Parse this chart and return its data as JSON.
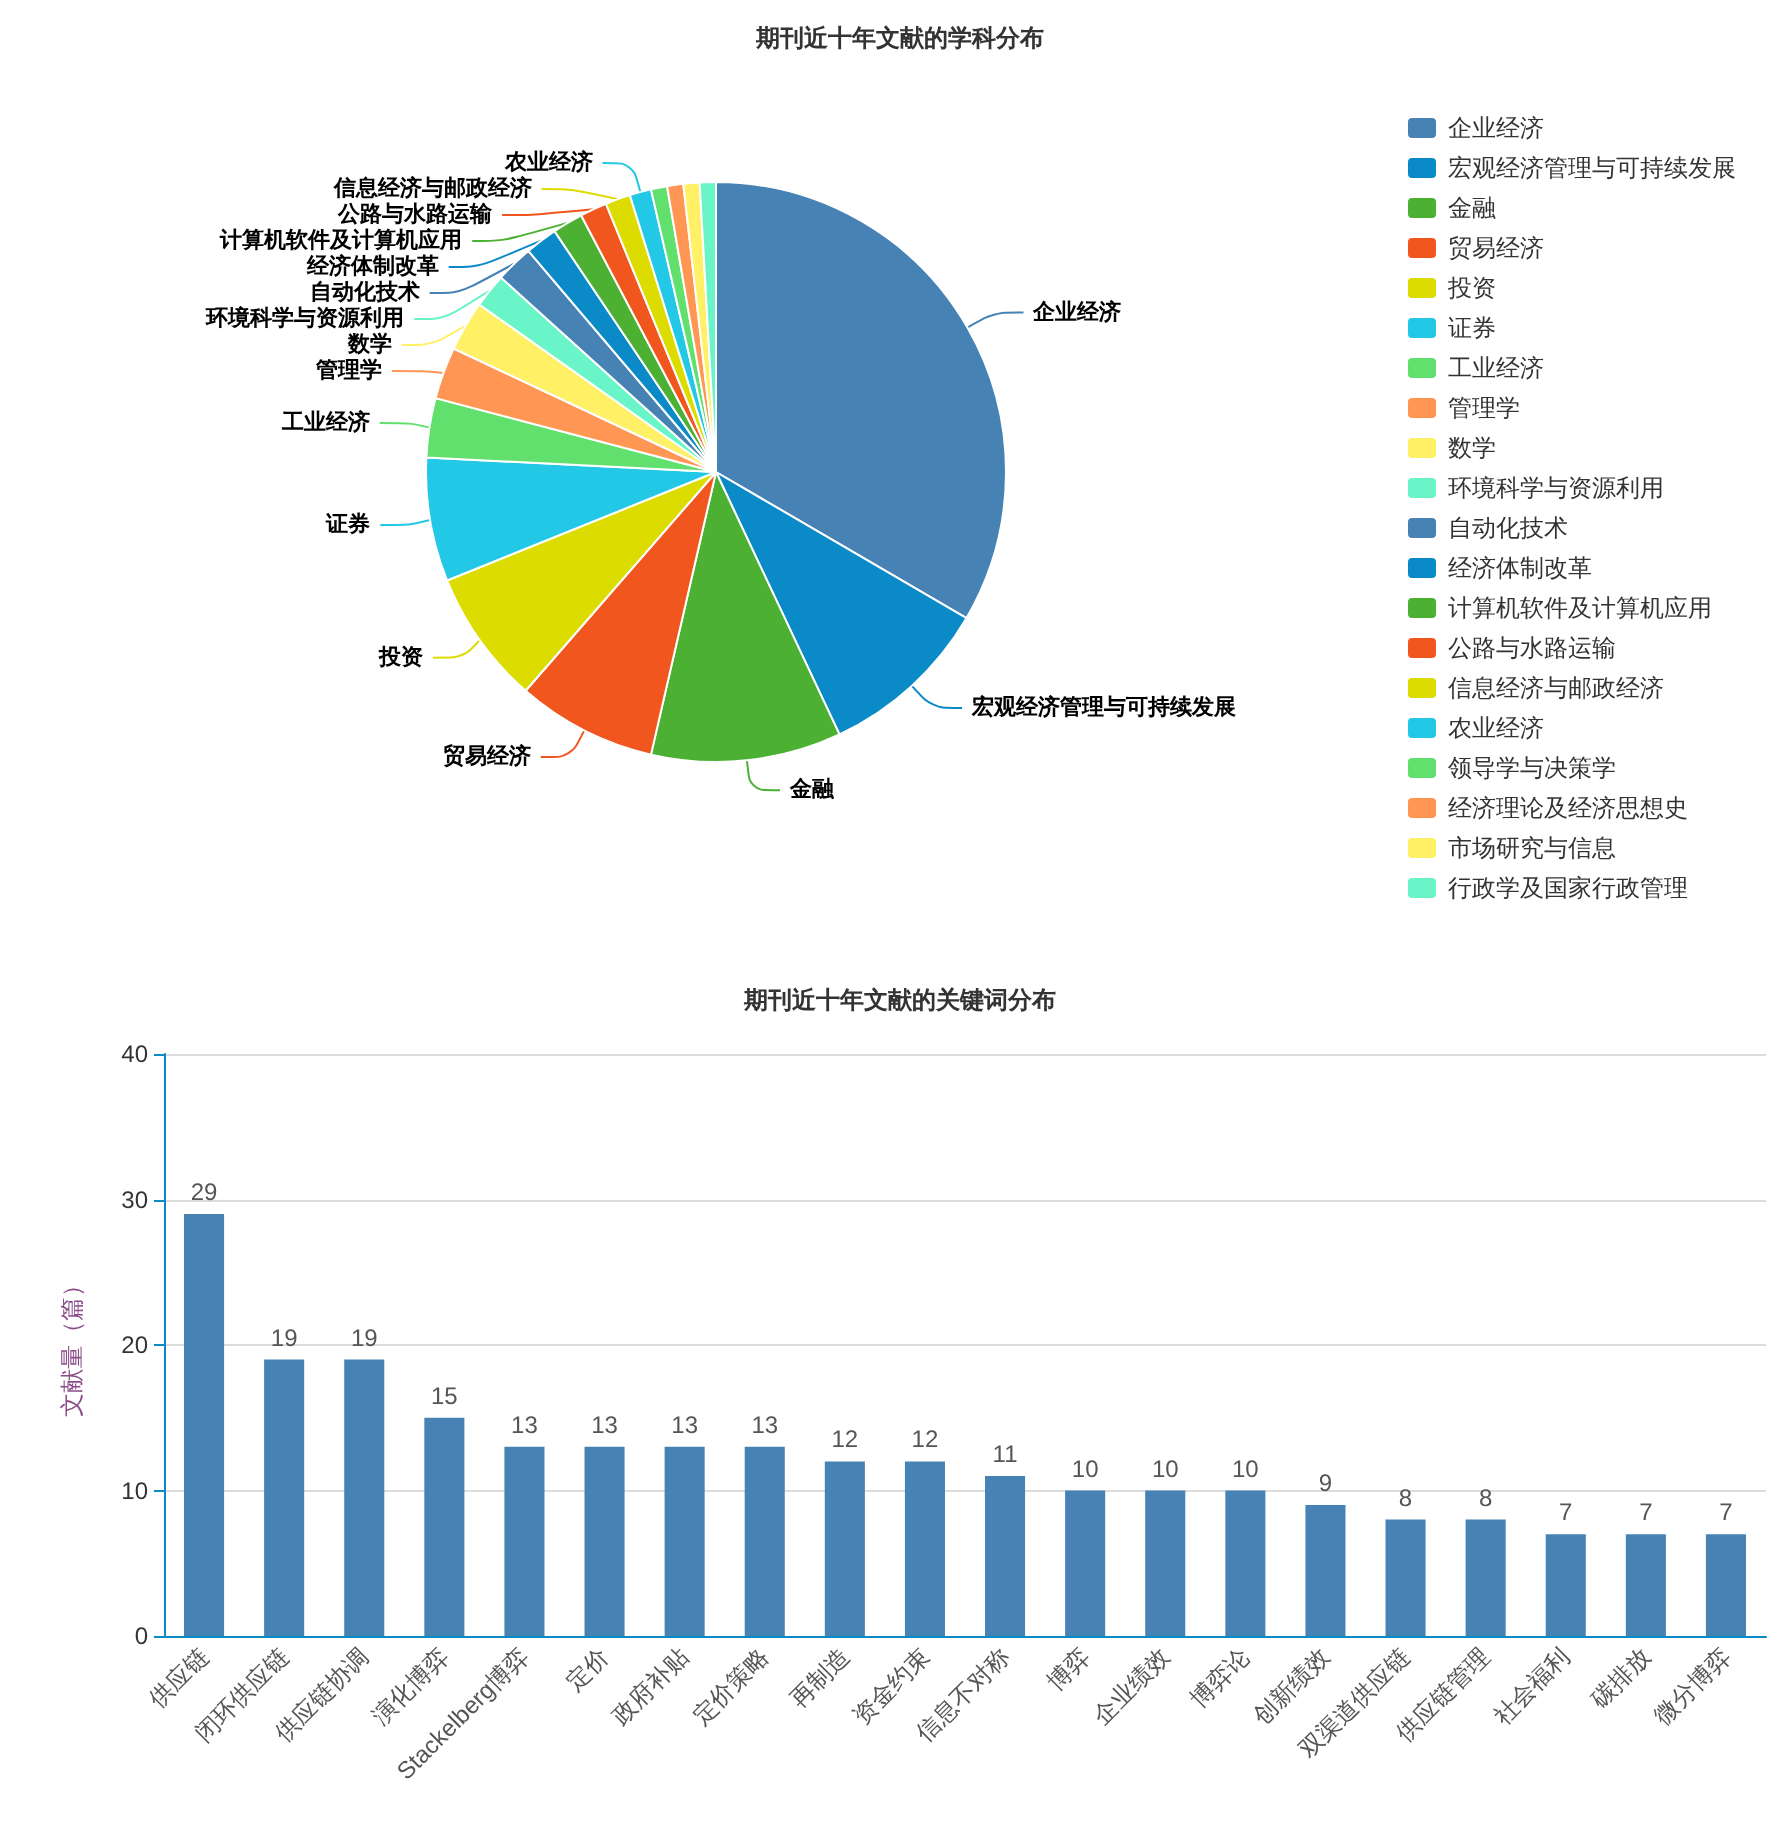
{
  "chart_data": [
    {
      "type": "pie",
      "title": "期刊近十年文献的学科分布",
      "legend": "right",
      "categories": [
        "企业经济",
        "宏观经济管理与可持续发展",
        "金融",
        "贸易经济",
        "投资",
        "证券",
        "工业经济",
        "管理学",
        "数学",
        "环境科学与资源利用",
        "自动化技术",
        "经济体制改革",
        "计算机软件及计算机应用",
        "公路与水路运输",
        "信息经济与邮政经济",
        "农业经济",
        "领导学与决策学",
        "经济理论及经济思想史",
        "市场研究与信息",
        "行政学及国家行政管理"
      ],
      "values": [
        33.4,
        9.6,
        10.6,
        7.8,
        7.5,
        6.9,
        3.3,
        2.9,
        2.8,
        1.9,
        2.1,
        1.8,
        1.7,
        1.5,
        1.4,
        1.2,
        0.9,
        0.9,
        0.9,
        0.9
      ],
      "colors": [
        "#4682b4",
        "#0b8ac8",
        "#4cb133",
        "#f0561d",
        "#dcdc00",
        "#22c8e5",
        "#62e06e",
        "#ff9654",
        "#fff066",
        "#6af5c8",
        "#4682b4",
        "#0b8ac8",
        "#4cb133",
        "#f0561d",
        "#dcdc00",
        "#22c8e5",
        "#62e06e",
        "#ff9654",
        "#fff066",
        "#6af5c8"
      ]
    },
    {
      "type": "bar",
      "title": "期刊近十年文献的关键词分布",
      "ylabel": "文献量（篇）",
      "categories": [
        "供应链",
        "闭环供应链",
        "供应链协调",
        "演化博弈",
        "Stackelberg博弈",
        "定价",
        "政府补贴",
        "定价策略",
        "再制造",
        "资金约束",
        "信息不对称",
        "博弈",
        "企业绩效",
        "博弈论",
        "创新绩效",
        "双渠道供应链",
        "供应链管理",
        "社会福利",
        "碳排放",
        "微分博弈"
      ],
      "values": [
        29,
        19,
        19,
        15,
        13,
        13,
        13,
        13,
        12,
        12,
        11,
        10,
        10,
        10,
        9,
        8,
        8,
        7,
        7,
        7
      ],
      "color": "#4682b4",
      "ylim": [
        0,
        40
      ],
      "yticks": [
        0,
        10,
        20,
        30,
        40
      ],
      "grid": "y",
      "data_labels": true
    }
  ]
}
